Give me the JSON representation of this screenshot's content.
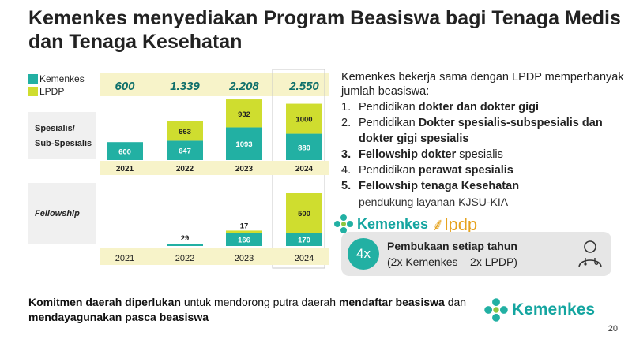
{
  "title": "Kemenkes menyediakan Program Beasiswa bagi Tenaga Medis dan Tenaga Kesehatan",
  "colors": {
    "kemenkes": "#22b0a3",
    "lpdp": "#cfdd2f",
    "total_band": "#f7f3c9",
    "brand": "#14a5a0",
    "lpdp_brand": "#e6a31f"
  },
  "chart_data": {
    "type": "bar",
    "stacked": true,
    "legend": [
      "Kemenkes",
      "LPDP"
    ],
    "years": [
      "2021",
      "2022",
      "2023",
      "2024"
    ],
    "totals": [
      "600",
      "1.339",
      "2.208",
      "2.550"
    ],
    "groups": [
      {
        "label": "Spesialis/\nSub-Spesialis",
        "series": [
          {
            "name": "Kemenkes",
            "values": [
              600,
              647,
              1093,
              880
            ]
          },
          {
            "name": "LPDP",
            "values": [
              0,
              663,
              932,
              1000
            ]
          }
        ]
      },
      {
        "label": "Fellowship",
        "series": [
          {
            "name": "Kemenkes",
            "values": [
              0,
              29,
              166,
              170
            ]
          },
          {
            "name": "LPDP",
            "values": [
              0,
              0,
              17,
              500
            ]
          }
        ]
      }
    ],
    "highlight_year": "2024"
  },
  "right": {
    "intro": "Kemenkes bekerja sama dengan LPDP memperbanyak jumlah beasiswa:",
    "items": [
      {
        "num": "1.",
        "pre": "Pendidikan ",
        "bold": "dokter dan dokter gigi",
        "post": "",
        "sub": ""
      },
      {
        "num": "2.",
        "pre": "Pendidikan ",
        "bold": "Dokter spesialis-subspesialis dan dokter gigi spesialis",
        "post": "",
        "sub": ""
      },
      {
        "num": "3.",
        "pre": "",
        "bold": "Fellowship dokter",
        "post": " spesialis",
        "sub": ""
      },
      {
        "num": "4.",
        "pre": "Pendidikan ",
        "bold": "perawat spesialis",
        "post": "",
        "sub": ""
      },
      {
        "num": "5.",
        "pre": "",
        "bold": "Fellowship tenaga Kesehatan",
        "post": "",
        "sub": "pendukung layanan KJSU-KIA"
      }
    ]
  },
  "brand": {
    "kemenkes": "Kemenkes",
    "lpdp": "lpdp"
  },
  "callout": {
    "bubble": "4x",
    "main": "Pembukaan setiap tahun",
    "sub": "(2x Kemenkes – 2x LPDP)"
  },
  "commitment": {
    "p1": "Komitmen daerah diperlukan",
    "p2": " untuk mendorong putra daerah ",
    "p3": "mendaftar beasiswa",
    "p4": " dan ",
    "p5": "mendayagunakan pasca beasiswa"
  },
  "page_number": "20"
}
